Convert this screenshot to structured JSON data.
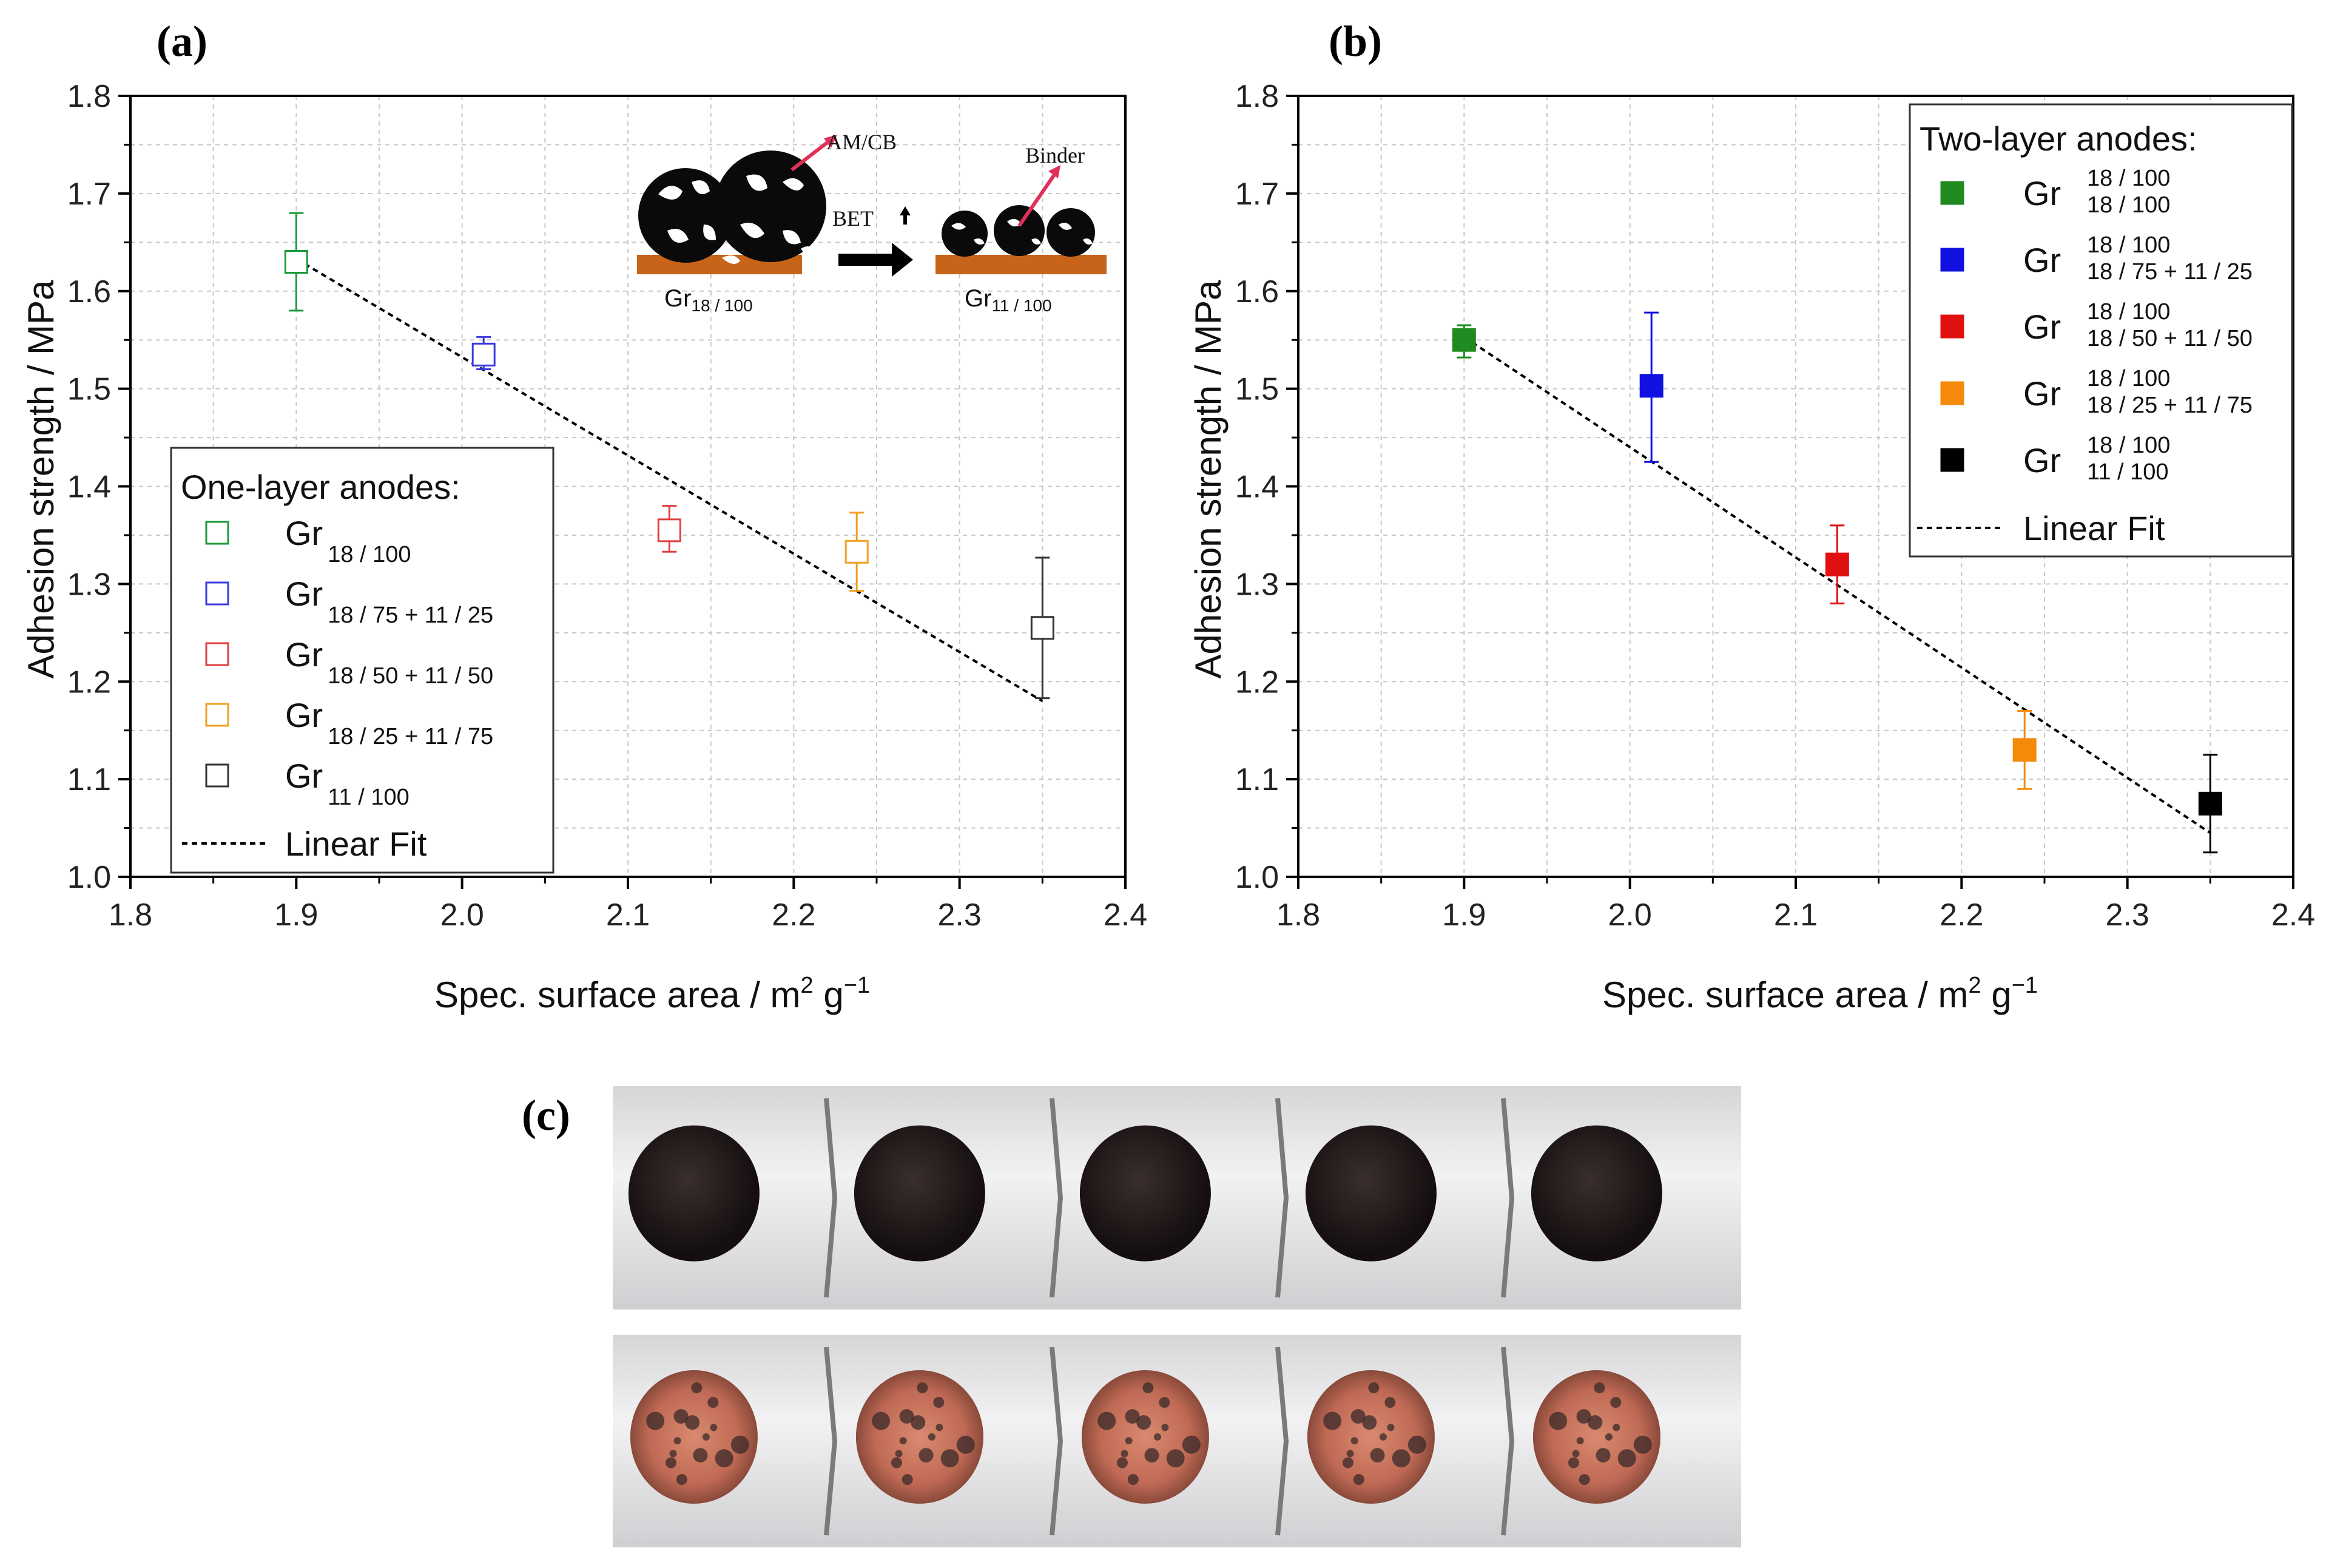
{
  "panels": {
    "a": "(a)",
    "b": "(b)",
    "c": "(c)"
  },
  "chart_data": [
    {
      "type": "scatter",
      "id": "a",
      "xlabel_main": "Spec. surface area / m",
      "xlabel_sup1": "2",
      "xlabel_mid": " g",
      "xlabel_sup2": "−1",
      "ylabel": "Adhesion strength / MPa",
      "xlim": [
        1.8,
        2.4
      ],
      "ylim": [
        1.0,
        1.8
      ],
      "xticks": [
        "1.8",
        "1.9",
        "2.0",
        "2.1",
        "2.2",
        "2.3",
        "2.4"
      ],
      "yticks": [
        "1.0",
        "1.1",
        "1.2",
        "1.3",
        "1.4",
        "1.5",
        "1.6",
        "1.7",
        "1.8"
      ],
      "marker": "open-square",
      "legend_title": "One-layer anodes:",
      "series": [
        {
          "name": "Gr",
          "sub": "18 / 100",
          "sup": "",
          "x": 1.9,
          "y": 1.63,
          "err_lo": 0.05,
          "err_hi": 0.05,
          "color": "#1a9a3a"
        },
        {
          "name": "Gr",
          "sub": "18 / 75 + 11 / 25",
          "sup": "",
          "x": 2.013,
          "y": 1.535,
          "err_lo": 0.015,
          "err_hi": 0.018,
          "color": "#3a3ae0"
        },
        {
          "name": "Gr",
          "sub": "18 / 50 + 11 / 50",
          "sup": "",
          "x": 2.125,
          "y": 1.355,
          "err_lo": 0.022,
          "err_hi": 0.025,
          "color": "#e04040"
        },
        {
          "name": "Gr",
          "sub": "18 / 25 + 11 / 75",
          "sup": "",
          "x": 2.238,
          "y": 1.333,
          "err_lo": 0.04,
          "err_hi": 0.04,
          "color": "#f0a020"
        },
        {
          "name": "Gr",
          "sub": "11 / 100",
          "sup": "",
          "x": 2.35,
          "y": 1.255,
          "err_lo": 0.072,
          "err_hi": 0.072,
          "color": "#333333"
        }
      ],
      "fit": {
        "label": "Linear Fit",
        "x": [
          1.9,
          2.35
        ],
        "y": [
          1.633,
          1.18
        ]
      },
      "inset": {
        "label_amcb": "AM/CB",
        "label_binder": "Binder",
        "label_bet": "BET",
        "label_left_main": "Gr",
        "label_left_sub": "18 / 100",
        "label_right_main": "Gr",
        "label_right_sub": "11 / 100"
      }
    },
    {
      "type": "scatter",
      "id": "b",
      "xlabel_main": "Spec. surface area / m",
      "xlabel_sup1": "2",
      "xlabel_mid": " g",
      "xlabel_sup2": "−1",
      "ylabel": "Adhesion strength / MPa",
      "xlim": [
        1.8,
        2.4
      ],
      "ylim": [
        1.0,
        1.8
      ],
      "xticks": [
        "1.8",
        "1.9",
        "2.0",
        "2.1",
        "2.2",
        "2.3",
        "2.4"
      ],
      "yticks": [
        "1.0",
        "1.1",
        "1.2",
        "1.3",
        "1.4",
        "1.5",
        "1.6",
        "1.7",
        "1.8"
      ],
      "marker": "filled-square",
      "legend_title": "Two-layer anodes:",
      "series": [
        {
          "name": "Gr",
          "sup": "18 / 100",
          "sub": "18 / 100",
          "x": 1.9,
          "y": 1.55,
          "err_lo": 0.018,
          "err_hi": 0.015,
          "color": "#1f8a1f"
        },
        {
          "name": "Gr",
          "sup": "18 / 100",
          "sub": "18 / 75 + 11 / 25",
          "x": 2.013,
          "y": 1.503,
          "err_lo": 0.078,
          "err_hi": 0.075,
          "color": "#1010e0"
        },
        {
          "name": "Gr",
          "sup": "18 / 100",
          "sub": "18 / 50 + 11 / 50",
          "x": 2.125,
          "y": 1.32,
          "err_lo": 0.04,
          "err_hi": 0.04,
          "color": "#e01010"
        },
        {
          "name": "Gr",
          "sup": "18 / 100",
          "sub": "18 / 25 + 11 / 75",
          "x": 2.238,
          "y": 1.13,
          "err_lo": 0.04,
          "err_hi": 0.04,
          "color": "#f58a0a"
        },
        {
          "name": "Gr",
          "sup": "18 / 100",
          "sub": "11 / 100",
          "x": 2.35,
          "y": 1.075,
          "err_lo": 0.05,
          "err_hi": 0.05,
          "color": "#000000"
        }
      ],
      "fit": {
        "label": "Linear Fit",
        "x": [
          1.9,
          2.35
        ],
        "y": [
          1.553,
          1.045
        ]
      }
    }
  ],
  "photo": {
    "rows": [
      {
        "kind": "black-coating",
        "count": 5
      },
      {
        "kind": "copper-exposed",
        "count": 5
      }
    ]
  },
  "colors": {
    "grid": "#c8c8c8",
    "fit_line": "#000000",
    "inset_substrate": "#c8641a",
    "inset_arrow": "#e0305a"
  }
}
